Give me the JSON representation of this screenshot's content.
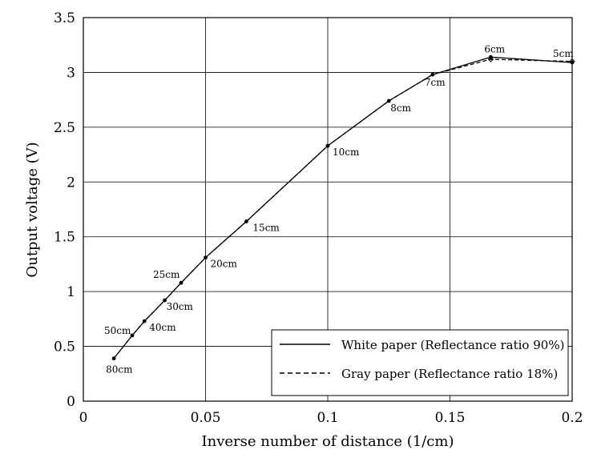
{
  "chart_data": {
    "type": "line",
    "title": "",
    "xlabel": "Inverse number of distance (1/cm)",
    "ylabel": "Output voltage (V)",
    "xlim": [
      0,
      0.2
    ],
    "ylim": [
      0,
      3.5
    ],
    "grid": true,
    "legend_position": "bottom-right",
    "x_ticks": [
      0,
      0.05,
      0.1,
      0.15,
      0.2
    ],
    "x_tick_labels": [
      "0",
      "0.05",
      "0.1",
      "0.15",
      "0.2"
    ],
    "y_ticks": [
      0,
      0.5,
      1,
      1.5,
      2,
      2.5,
      3,
      3.5
    ],
    "y_tick_labels": [
      "0",
      "0.5",
      "1",
      "1.5",
      "2",
      "2.5",
      "3",
      "3.5"
    ],
    "point_labels": [
      "80cm",
      "50cm",
      "40cm",
      "30cm",
      "25cm",
      "20cm",
      "15cm",
      "10cm",
      "8cm",
      "7cm",
      "6cm",
      "5cm"
    ],
    "x": [
      0.0125,
      0.02,
      0.025,
      0.0333,
      0.04,
      0.05,
      0.0667,
      0.1,
      0.125,
      0.1429,
      0.1667,
      0.2
    ],
    "series": [
      {
        "name": "White paper (Reflectance ratio 90%)",
        "style": "solid",
        "values": [
          0.39,
          0.6,
          0.73,
          0.92,
          1.08,
          1.31,
          1.64,
          2.33,
          2.74,
          2.98,
          3.14,
          3.09
        ]
      },
      {
        "name": "Gray paper (Reflectance ratio 18%)",
        "style": "dashed",
        "values": [
          0.39,
          0.6,
          0.73,
          0.92,
          1.08,
          1.31,
          1.64,
          2.33,
          2.74,
          2.98,
          3.12,
          3.1
        ]
      }
    ]
  }
}
